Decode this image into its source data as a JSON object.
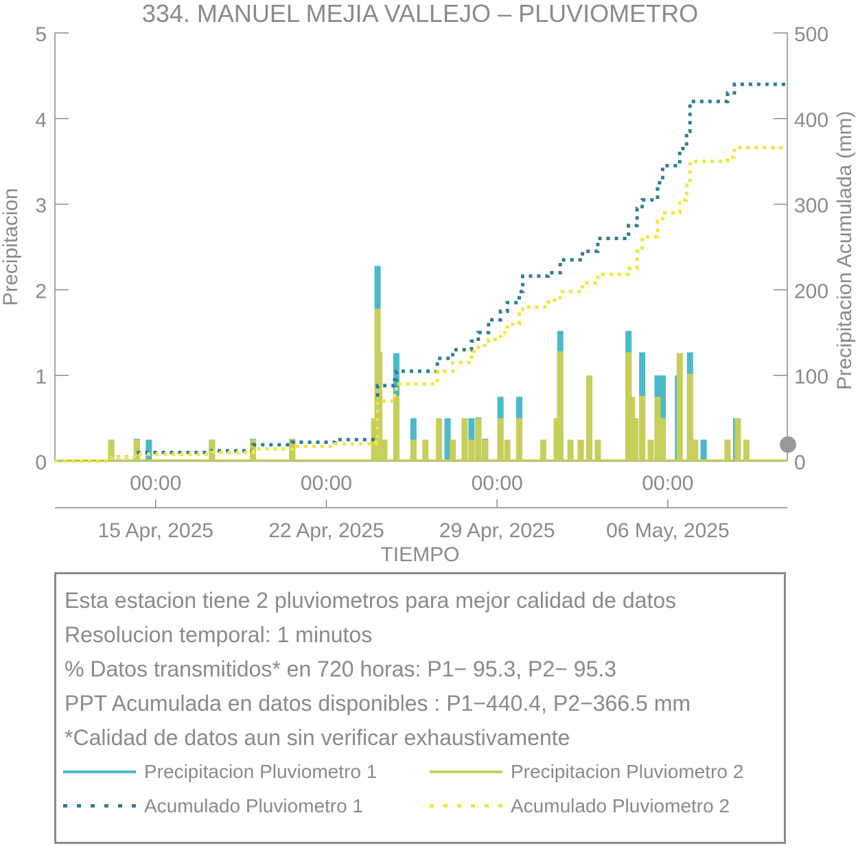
{
  "title": "334. MANUEL MEJIA VALLEJO – PLUVIOMETRO",
  "colors": {
    "p1_bar": "#4bb9c9",
    "p2_bar": "#c5cf5a",
    "p1_acc": "#2e7d96",
    "p2_acc": "#f5e53a",
    "axis": "#8a8a8a"
  },
  "info": {
    "line1": "Esta estacion tiene 2 pluviometros para mejor calidad de datos",
    "line2": "Resolucion temporal: 1 minutos",
    "line3": "% Datos transmitidos* en 720 horas: P1− 95.3, P2− 95.3",
    "line4": "PPT Acumulada en datos disponibles : P1−440.4, P2−366.5 mm",
    "line5": "*Calidad de datos aun sin verificar exhaustivamente"
  },
  "legend": [
    {
      "label": "Precipitacion Pluviometro 1",
      "icon": "solid-line",
      "color": "#4bb9c9"
    },
    {
      "label": "Precipitacion Pluviometro 2",
      "icon": "solid-line",
      "color": "#c5cf5a"
    },
    {
      "label": "Acumulado Pluviometro 1",
      "icon": "dotted-line",
      "color": "#2e7d96"
    },
    {
      "label": "Acumulado Pluviometro 2",
      "icon": "dotted-line",
      "color": "#f5e53a"
    }
  ],
  "chart_data": {
    "type": "bar",
    "title": "334. MANUEL MEJIA VALLEJO – PLUVIOMETRO",
    "xlabel": "TIEMPO",
    "ylabel": "Precipitacion",
    "y2label": "Precipitacion Acumulada (mm)",
    "ylim": [
      0,
      5
    ],
    "y2lim": [
      0,
      500
    ],
    "yticks": [
      "0",
      "1",
      "2",
      "3",
      "4",
      "5"
    ],
    "y2ticks": [
      "0",
      "100",
      "200",
      "300",
      "400",
      "500"
    ],
    "xlim_days": [
      -5.9,
      37.0
    ],
    "x_ticks": [
      {
        "day": 0,
        "time": "00:00",
        "date": "15 Apr, 2025"
      },
      {
        "day": 10,
        "time": "00:00",
        "date": "22 Apr, 2025"
      },
      {
        "day": 20,
        "time": "00:00",
        "date": "29 Apr, 2025"
      },
      {
        "day": 30,
        "time": "00:00",
        "date": "06 May, 2025"
      }
    ],
    "series": [
      {
        "name": "Precipitacion Pluviometro 1",
        "kind": "bar",
        "axis": "left",
        "points": [
          [
            -2.6,
            0.25
          ],
          [
            -1.1,
            0.26
          ],
          [
            -0.4,
            0.25
          ],
          [
            3.3,
            0.25
          ],
          [
            5.7,
            0.26
          ],
          [
            8.0,
            0.26
          ],
          [
            13.0,
            0.25
          ],
          [
            13.0,
            2.28
          ],
          [
            14.1,
            1.26
          ],
          [
            15.1,
            0.5
          ],
          [
            17.1,
            0.5
          ],
          [
            18.5,
            0.5
          ],
          [
            18.9,
            0.51
          ],
          [
            19.3,
            0.26
          ],
          [
            20.2,
            0.75
          ],
          [
            21.3,
            0.75
          ],
          [
            23.7,
            1.52
          ],
          [
            27.7,
            1.52
          ],
          [
            28.5,
            1.27
          ],
          [
            29.4,
            1.0
          ],
          [
            29.7,
            1.0
          ],
          [
            30.6,
            1.0
          ],
          [
            31.3,
            1.27
          ],
          [
            32.1,
            0.25
          ],
          [
            34.0,
            0.5
          ]
        ]
      },
      {
        "name": "Precipitacion Pluviometro 2",
        "kind": "bar",
        "axis": "left",
        "points": [
          [
            -2.6,
            0.25
          ],
          [
            -1.1,
            0.25
          ],
          [
            3.3,
            0.25
          ],
          [
            5.7,
            0.25
          ],
          [
            8.0,
            0.26
          ],
          [
            12.8,
            0.5
          ],
          [
            13.0,
            1.78
          ],
          [
            13.1,
            1.27
          ],
          [
            13.4,
            0.25
          ],
          [
            14.1,
            0.76
          ],
          [
            15.1,
            0.25
          ],
          [
            15.8,
            0.25
          ],
          [
            16.6,
            0.5
          ],
          [
            17.4,
            0.25
          ],
          [
            18.1,
            0.5
          ],
          [
            18.5,
            0.25
          ],
          [
            18.9,
            0.5
          ],
          [
            19.3,
            0.25
          ],
          [
            20.2,
            0.5
          ],
          [
            20.6,
            0.25
          ],
          [
            21.3,
            0.5
          ],
          [
            22.7,
            0.25
          ],
          [
            23.5,
            0.5
          ],
          [
            23.7,
            1.28
          ],
          [
            24.3,
            0.25
          ],
          [
            24.9,
            0.25
          ],
          [
            25.4,
            1.0
          ],
          [
            25.9,
            0.25
          ],
          [
            27.7,
            1.27
          ],
          [
            27.9,
            0.75
          ],
          [
            28.1,
            0.5
          ],
          [
            28.5,
            0.76
          ],
          [
            29.0,
            0.25
          ],
          [
            29.4,
            0.75
          ],
          [
            29.7,
            0.5
          ],
          [
            30.7,
            1.26
          ],
          [
            31.3,
            1.02
          ],
          [
            31.6,
            0.25
          ],
          [
            33.5,
            0.25
          ],
          [
            34.1,
            0.5
          ],
          [
            34.6,
            0.25
          ]
        ]
      },
      {
        "name": "Acumulado Pluviometro 1",
        "kind": "dotted-step",
        "axis": "right",
        "points": [
          [
            -5.9,
            0
          ],
          [
            -3.0,
            0
          ],
          [
            -2.6,
            5
          ],
          [
            -1.5,
            5
          ],
          [
            -1.1,
            10
          ],
          [
            3.3,
            12
          ],
          [
            5.7,
            19
          ],
          [
            8.0,
            22
          ],
          [
            10.5,
            25
          ],
          [
            12.9,
            27
          ],
          [
            13.0,
            88
          ],
          [
            14.0,
            95
          ],
          [
            14.1,
            105
          ],
          [
            16.5,
            120
          ],
          [
            17.4,
            130
          ],
          [
            18.5,
            140
          ],
          [
            18.9,
            150
          ],
          [
            19.5,
            165
          ],
          [
            20.2,
            175
          ],
          [
            20.6,
            185
          ],
          [
            21.3,
            198
          ],
          [
            21.5,
            216
          ],
          [
            23.0,
            220
          ],
          [
            23.7,
            235
          ],
          [
            25.0,
            245
          ],
          [
            25.9,
            260
          ],
          [
            27.7,
            275
          ],
          [
            28.2,
            295
          ],
          [
            28.5,
            305
          ],
          [
            29.4,
            325
          ],
          [
            29.7,
            345
          ],
          [
            30.7,
            365
          ],
          [
            31.1,
            385
          ],
          [
            31.3,
            420
          ],
          [
            33.5,
            430
          ],
          [
            33.9,
            440
          ],
          [
            37.0,
            441
          ]
        ]
      },
      {
        "name": "Acumulado Pluviometro 2",
        "kind": "dotted-step",
        "axis": "right",
        "points": [
          [
            -5.9,
            0
          ],
          [
            -3.0,
            0
          ],
          [
            -2.6,
            5
          ],
          [
            -1.5,
            5
          ],
          [
            -1.1,
            8
          ],
          [
            3.3,
            10
          ],
          [
            5.7,
            14
          ],
          [
            8.0,
            17
          ],
          [
            10.5,
            20
          ],
          [
            12.9,
            22
          ],
          [
            13.0,
            70
          ],
          [
            14.0,
            82
          ],
          [
            14.1,
            90
          ],
          [
            16.5,
            105
          ],
          [
            17.4,
            115
          ],
          [
            18.5,
            128
          ],
          [
            18.9,
            135
          ],
          [
            19.5,
            142
          ],
          [
            20.2,
            150
          ],
          [
            20.6,
            160
          ],
          [
            21.3,
            175
          ],
          [
            21.5,
            180
          ],
          [
            23.0,
            188
          ],
          [
            23.7,
            198
          ],
          [
            25.0,
            208
          ],
          [
            25.9,
            218
          ],
          [
            27.7,
            225
          ],
          [
            28.2,
            245
          ],
          [
            28.5,
            262
          ],
          [
            29.4,
            280
          ],
          [
            29.7,
            290
          ],
          [
            30.7,
            305
          ],
          [
            31.1,
            322
          ],
          [
            31.3,
            350
          ],
          [
            33.5,
            355
          ],
          [
            33.9,
            366
          ],
          [
            37.0,
            366.5
          ]
        ]
      }
    ]
  }
}
